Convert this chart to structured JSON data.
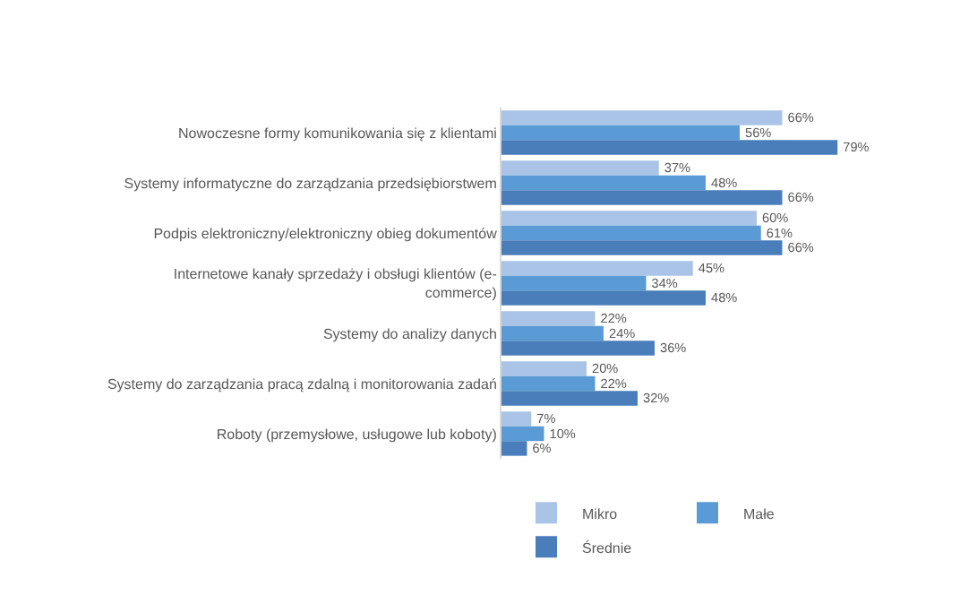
{
  "chart_data": {
    "type": "bar",
    "orientation": "horizontal",
    "legend": "bottom",
    "tick_labels": "y",
    "xlim": [
      0,
      80
    ],
    "categories": [
      "Nowoczesne formy komunikowania się z klientami",
      "Systemy informatyczne do zarządzania przedsiębiorstwem",
      "Podpis elektroniczny/elektroniczny obieg dokumentów",
      "Internetowe kanały sprzedaży i obsługi klientów (e-\ncommerce)",
      "Systemy do analizy danych",
      "Systemy do zarządzania pracą zdalną i monitorowania zadań",
      "Roboty (przemysłowe, usługowe lub koboty)"
    ],
    "series": [
      {
        "name": "Mikro",
        "color": "#a9c4e6",
        "values": [
          66,
          37,
          60,
          45,
          22,
          20,
          7
        ],
        "value_labels": [
          "66%",
          "37%",
          "60%",
          "45%",
          "22%",
          "20%",
          "7%"
        ]
      },
      {
        "name": "Małe",
        "color": "#5b9bd5",
        "values": [
          56,
          48,
          61,
          34,
          24,
          22,
          10
        ],
        "value_labels": [
          "56%",
          "48%",
          "61%",
          "34%",
          "24%",
          "22%",
          "10%"
        ]
      },
      {
        "name": "Średnie",
        "color": "#4a7ebb",
        "values": [
          79,
          66,
          66,
          48,
          36,
          32,
          6
        ],
        "value_labels": [
          "79%",
          "66%",
          "66%",
          "48%",
          "36%",
          "32%",
          "6%"
        ]
      }
    ]
  }
}
